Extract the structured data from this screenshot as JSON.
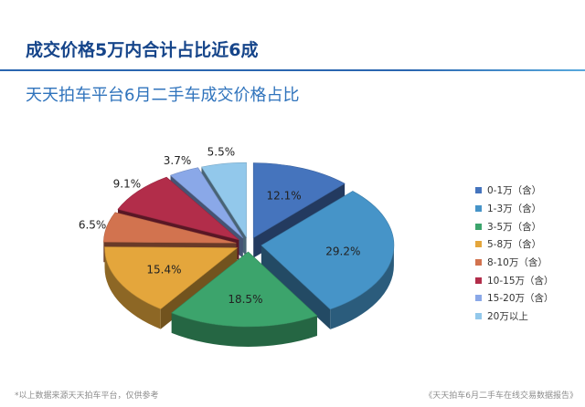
{
  "header": {
    "headline": "成交价格5万内合计占比近6成",
    "subtitle": "天天拍车平台6月二手车成交价格占比"
  },
  "footer": {
    "note": "*以上数据来源天天拍车平台，仅供参考",
    "report": "《天天拍车6月二手车在线交易数据报告》"
  },
  "chart_data": {
    "type": "pie",
    "title": "天天拍车平台6月二手车成交价格占比",
    "categories": [
      "0-1万（含）",
      "1-3万（含）",
      "3-5万（含）",
      "5-8万（含）",
      "8-10万（含）",
      "10-15万（含）",
      "15-20万（含）",
      "20万以上"
    ],
    "values": [
      12.1,
      29.2,
      18.5,
      15.4,
      6.5,
      9.1,
      3.7,
      5.5
    ],
    "value_labels": [
      "12.1%",
      "29.2%",
      "18.5%",
      "15.4%",
      "6.5%",
      "9.1%",
      "3.7%",
      "5.5%"
    ],
    "colors": [
      "#4574bd",
      "#4694c8",
      "#3ca46c",
      "#e4a63c",
      "#d2734f",
      "#b22d4a",
      "#8aa8e8",
      "#92c8eb"
    ],
    "legend_position": "right",
    "style": "exploded-3d"
  }
}
